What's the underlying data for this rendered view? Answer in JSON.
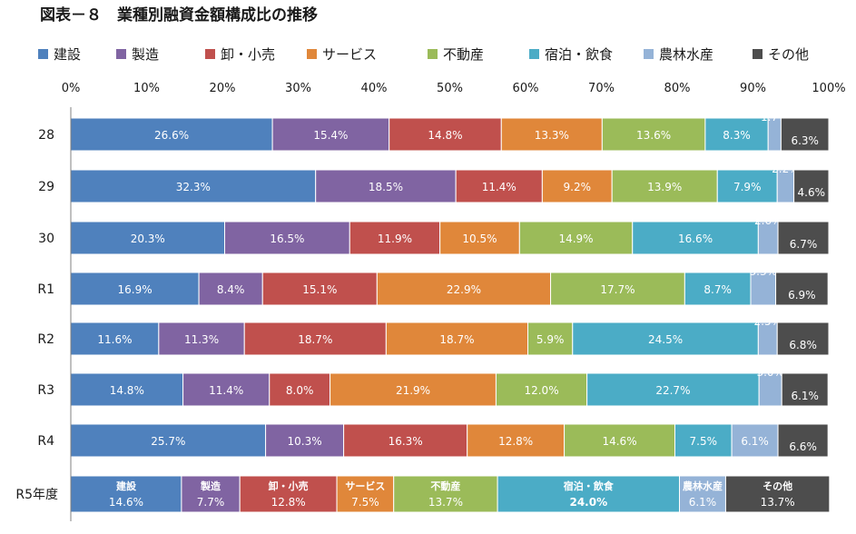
{
  "chart_data": {
    "type": "bar",
    "orientation": "horizontal",
    "stacked": "percent",
    "title": "図表－８　業種別融資金額構成比の推移",
    "categories": [
      "28",
      "29",
      "30",
      "R1",
      "R2",
      "R3",
      "R4",
      "R5年度"
    ],
    "xlim": [
      0,
      100
    ],
    "xticks": [
      "0%",
      "10%",
      "20%",
      "30%",
      "40%",
      "50%",
      "60%",
      "70%",
      "80%",
      "90%",
      "100%"
    ],
    "legend_position": "top",
    "grid": false,
    "series": [
      {
        "name": "建設",
        "color": "#4f81bd",
        "values": [
          26.6,
          32.3,
          20.3,
          16.9,
          11.6,
          14.8,
          25.7,
          14.6
        ],
        "labels": [
          "26.6%",
          "32.3%",
          "20.3%",
          "16.9%",
          "11.6%",
          "14.8%",
          "25.7%",
          "14.6%"
        ]
      },
      {
        "name": "製造",
        "color": "#8064a2",
        "values": [
          15.4,
          18.5,
          16.5,
          8.4,
          11.3,
          11.4,
          10.3,
          7.7
        ],
        "labels": [
          "15.4%",
          "18.5%",
          "16.5%",
          "8.4%",
          "11.3%",
          "11.4%",
          "10.3%",
          "7.7%"
        ]
      },
      {
        "name": "卸・小売",
        "color": "#c0504d",
        "values": [
          14.8,
          11.4,
          11.9,
          15.1,
          18.7,
          8.0,
          16.3,
          12.8
        ],
        "labels": [
          "14.8%",
          "11.4%",
          "11.9%",
          "15.1%",
          "18.7%",
          "8.0%",
          "16.3%",
          "12.8%"
        ]
      },
      {
        "name": "サービス",
        "color": "#e0873a",
        "values": [
          13.3,
          9.2,
          10.5,
          22.9,
          18.7,
          21.9,
          12.8,
          7.5
        ],
        "labels": [
          "13.3%",
          "9.2%",
          "10.5%",
          "22.9%",
          "18.7%",
          "21.9%",
          "12.8%",
          "7.5%"
        ]
      },
      {
        "name": "不動産",
        "color": "#9bbb59",
        "values": [
          13.6,
          13.9,
          14.9,
          17.7,
          5.9,
          12.0,
          14.6,
          13.7
        ],
        "labels": [
          "13.6%",
          "13.9%",
          "14.9%",
          "17.7%",
          "5.9%",
          "12.0%",
          "14.6%",
          "13.7%"
        ]
      },
      {
        "name": "宿泊・飲食",
        "color": "#4bacc6",
        "values": [
          8.3,
          7.9,
          16.6,
          8.7,
          24.5,
          22.7,
          7.5,
          24.0
        ],
        "labels": [
          "8.3%",
          "7.9%",
          "16.6%",
          "8.7%",
          "24.5%",
          "22.7%",
          "7.5%",
          "24.0%"
        ]
      },
      {
        "name": "農林水産",
        "color": "#95b3d7",
        "values": [
          1.7,
          2.2,
          2.6,
          3.3,
          2.5,
          3.0,
          6.1,
          6.1
        ],
        "labels": [
          "1.7%",
          "2.2%",
          "2.6%",
          "3.3%",
          "2.5%",
          "3.0%",
          "6.1%",
          "6.1%"
        ]
      },
      {
        "name": "その他",
        "color": "#4d4d4d",
        "values": [
          6.3,
          4.6,
          6.7,
          6.9,
          6.8,
          6.1,
          6.6,
          13.7
        ],
        "labels": [
          "6.3%",
          "4.6%",
          "6.7%",
          "6.9%",
          "6.8%",
          "6.1%",
          "6.6%",
          "13.7%"
        ]
      }
    ],
    "last_row_inline_category_names": true
  }
}
